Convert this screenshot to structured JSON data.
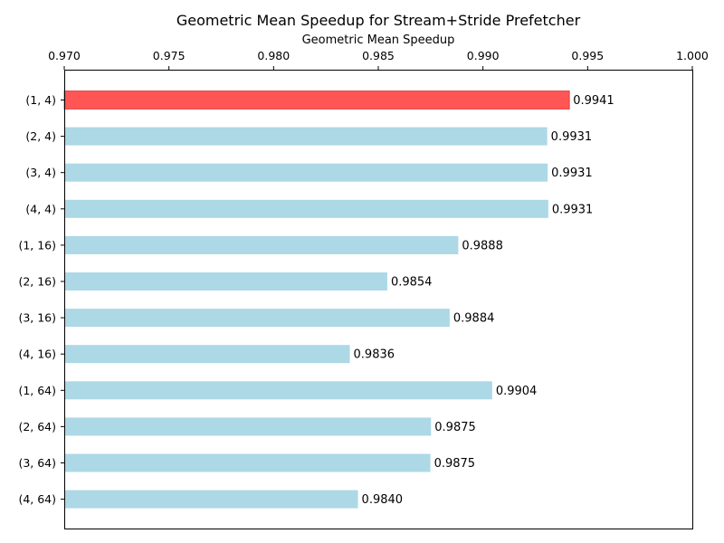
{
  "chart_data": {
    "type": "bar",
    "orientation": "horizontal",
    "title": "Geometric Mean Speedup for Stream+Stride Prefetcher",
    "xlabel": "Geometric Mean Speedup",
    "ylabel": "",
    "xlim": [
      0.97,
      1.0
    ],
    "x_axis_position": "top",
    "xticks": [
      "0.970",
      "0.975",
      "0.980",
      "0.985",
      "0.990",
      "0.995",
      "1.000"
    ],
    "grid": false,
    "categories": [
      "(1, 4)",
      "(2, 4)",
      "(3, 4)",
      "(4, 4)",
      "(1, 16)",
      "(2, 16)",
      "(3, 16)",
      "(4, 16)",
      "(1, 64)",
      "(2, 64)",
      "(3, 64)",
      "(4, 64)"
    ],
    "values": [
      0.99413,
      0.99307,
      0.99309,
      0.99312,
      0.98882,
      0.98543,
      0.98841,
      0.98364,
      0.99044,
      0.98752,
      0.98749,
      0.98403
    ],
    "value_labels": [
      "0.9941",
      "0.9931",
      "0.9931",
      "0.9931",
      "0.9888",
      "0.9854",
      "0.9884",
      "0.9836",
      "0.9904",
      "0.9875",
      "0.9875",
      "0.9840"
    ],
    "highlight_index": 0,
    "colors": {
      "bar": "#add8e6",
      "highlight": "#ff5555",
      "highlight_edge": "#d62728",
      "axis": "#000000"
    }
  }
}
